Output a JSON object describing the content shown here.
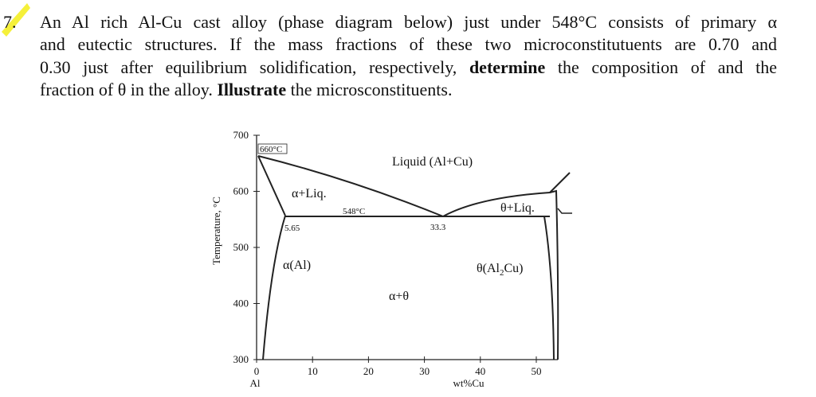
{
  "question": {
    "number": "7.",
    "lines": [
      [
        "An Al rich Al-Cu cast alloy (phase diagram below) just under 548°C consists of primary α"
      ],
      [
        "and eutectic structures. If the mass fractions of these two microconstitutuents are 0.70 and"
      ],
      [
        "0.30 just after equilibrium solidification, respectively, ",
        "determine",
        " the composition of and the"
      ],
      [
        "fraction of θ in the alloy. ",
        "Illustrate",
        " the microsconstituents."
      ]
    ]
  },
  "figure": {
    "y_label": "Temperature, °C",
    "x_label": "wt%Cu",
    "y_ticks": [
      700,
      600,
      500,
      400,
      300
    ],
    "x_ticks": [
      0,
      10,
      20,
      30,
      40,
      50
    ],
    "x_origin_label": "Al",
    "labels": {
      "melting_point": "660°C",
      "liquid": "Liquid (Al+Cu)",
      "alpha_liq": "α+Liq.",
      "eutectic_temp": "548°C",
      "theta_liq": "θ+Liq.",
      "alpha_max": "5.65",
      "eutectic_comp": "33.3",
      "alpha": "α(Al)",
      "theta": [
        "θ(Al",
        "2",
        "Cu)"
      ],
      "alpha_theta": "α+θ"
    }
  }
}
